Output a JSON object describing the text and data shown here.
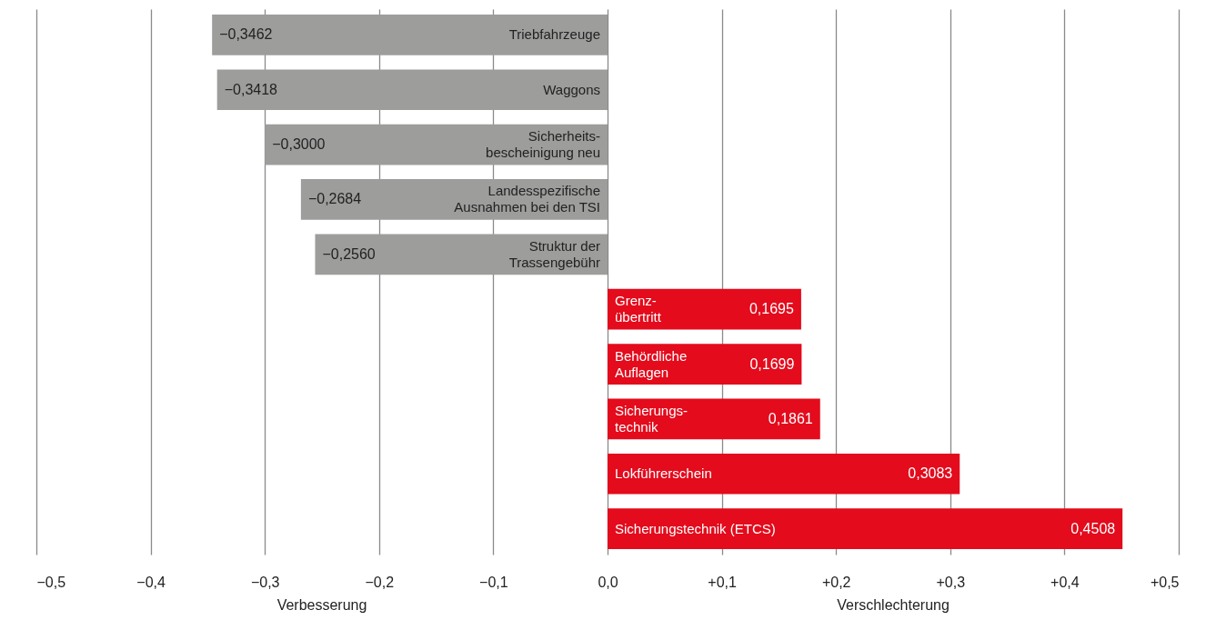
{
  "chart_data": {
    "type": "bar",
    "orientation": "horizontal",
    "categories": [
      "Triebfahrzeuge",
      "Waggons",
      "Sicherheits-\nbescheinigung neu",
      "Landesspezifische\nAusnahmen bei den TSI",
      "Struktur der\nTrassengebühr",
      "Grenz-\nübertritt",
      "Behördliche\nAuflagen",
      "Sicherungs-\ntechnik",
      "Lokführerschein",
      "Sicherungstechnik (ETCS)"
    ],
    "values": [
      -0.3462,
      -0.3418,
      -0.3,
      -0.2684,
      -0.256,
      0.1695,
      0.1699,
      0.1861,
      0.3083,
      0.4508
    ],
    "colors": [
      "#9d9d9c",
      "#9d9d9c",
      "#9d9d9c",
      "#9d9d9c",
      "#9d9d9c",
      "#e30b1c",
      "#e30b1c",
      "#e30b1c",
      "#e30b1c",
      "#e30b1c"
    ],
    "value_labels": [
      "−0,3462",
      "−0,3418",
      "−0,3000",
      "−0,2684",
      "−0,2560",
      "0,1695",
      "0,1699",
      "0,1861",
      "0,3083",
      "0,4508"
    ],
    "xlim": [
      -0.5,
      0.5
    ],
    "xticks": [
      {
        "value": -0.5,
        "label": "−0,5"
      },
      {
        "value": -0.4,
        "label": "−0,4"
      },
      {
        "value": -0.3,
        "label": "−0,3"
      },
      {
        "value": -0.2,
        "label": "−0,2"
      },
      {
        "value": -0.1,
        "label": "−0,1"
      },
      {
        "value": 0,
        "label": "0,0"
      },
      {
        "value": 0.1,
        "label": "+0,1"
      },
      {
        "value": 0.2,
        "label": "+0,2"
      },
      {
        "value": 0.3,
        "label": "+0,3"
      },
      {
        "value": 0.4,
        "label": "+0,4"
      },
      {
        "value": 0.5,
        "label": "+0,5"
      }
    ],
    "grid": "x",
    "tick_labels": "x",
    "annotations": [
      "Verbesserung",
      "Verschlechterung"
    ]
  }
}
